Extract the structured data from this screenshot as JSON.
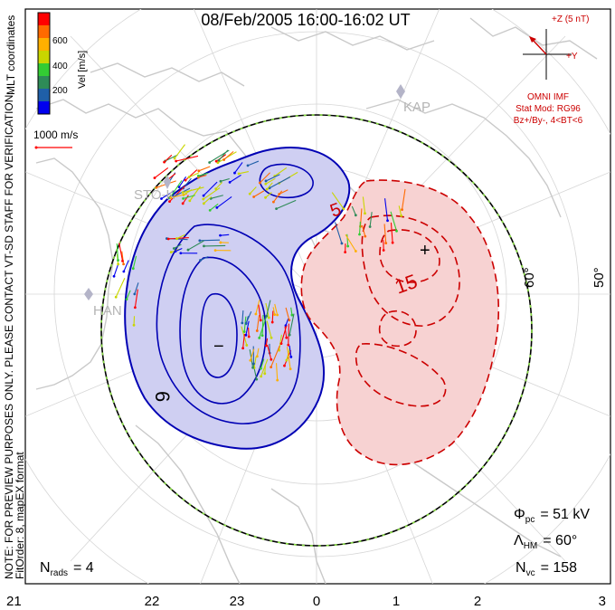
{
  "title": "08/Feb/2005 16:00-16:02 UT",
  "colorbar": {
    "label": "Vel [m/s]",
    "ticks": [
      "600",
      "400",
      "200"
    ],
    "colors": [
      "#ff0000",
      "#ff6a00",
      "#ffb000",
      "#c9d600",
      "#33cc33",
      "#2e8b57",
      "#1f5fa8",
      "#0000ee"
    ]
  },
  "left_labels": {
    "coordinates": "MLT coordinates",
    "note": "NOTE: FOR PREVIEW PURPOSES ONLY. PLEASE CONTACT VT-SD STAFF FOR VERIFICATION.",
    "fit": "FitOrder: 8, mapEX format"
  },
  "scale_vector": {
    "label": "1000 m/s",
    "color": "#ff0000"
  },
  "imf": {
    "axis_label": "+Z (5 nT)",
    "y_label": "+Y",
    "source": "OMNI IMF",
    "stat_mod": "Stat Mod: RG96",
    "condition": "Bz+/By-, 4<BT<6"
  },
  "stations": [
    "STO-K",
    "KAP",
    "HAN"
  ],
  "latitude_labels": [
    "60°",
    "50°"
  ],
  "contours": {
    "positive_label": "15",
    "negative_label": "6",
    "plus_marker": "+",
    "minus_marker": "−",
    "small_label": "5"
  },
  "stats": {
    "phi_pc": {
      "sym": "Φ",
      "sub": "pc",
      "value": "= 51 kV"
    },
    "lambda_hm": {
      "sym": "Λ",
      "sub": "HM",
      "value": "= 60°"
    },
    "n_vc": {
      "sym": "N",
      "sub": "vc",
      "value": "= 158"
    },
    "n_rads": {
      "sym": "N",
      "sub": "rads",
      "value": "= 4"
    }
  },
  "mlt_ticks": [
    "21",
    "22",
    "23",
    "0",
    "1",
    "2",
    "3"
  ],
  "colors": {
    "positive": "#cc0000",
    "negative": "#0000b4",
    "positive_fill": "#f4c4c4",
    "negative_fill": "#c8c8ee",
    "hmb": "#88dd44"
  }
}
